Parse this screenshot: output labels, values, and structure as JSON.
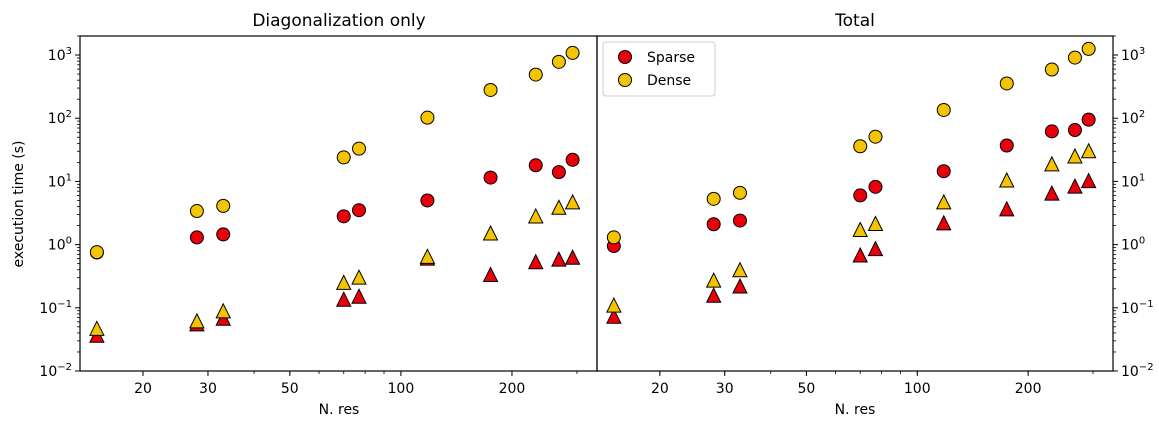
{
  "chart_data": [
    {
      "type": "scatter",
      "title": "Diagonalization only",
      "xlabel": "N. res",
      "ylabel": "execution time (s)",
      "xscale": "log",
      "yscale": "log",
      "xlim": [
        13.5,
        340
      ],
      "ylim": [
        0.01,
        2000
      ],
      "xticks": [
        {
          "v": 20,
          "label": "20"
        },
        {
          "v": 30,
          "label": "30"
        },
        {
          "v": 50,
          "label": "50"
        },
        {
          "v": 100,
          "label": "100"
        },
        {
          "v": 200,
          "label": "200"
        }
      ],
      "yticks": [
        {
          "v": 0.01,
          "base": "10",
          "exp": "−2"
        },
        {
          "v": 0.1,
          "base": "10",
          "exp": "−1"
        },
        {
          "v": 1,
          "base": "10",
          "exp": "0"
        },
        {
          "v": 10,
          "base": "10",
          "exp": "1"
        },
        {
          "v": 100,
          "base": "10",
          "exp": "2"
        },
        {
          "v": 1000,
          "base": "10",
          "exp": "3"
        }
      ],
      "yaxis_side": "left",
      "series": [
        {
          "marker": "circle",
          "color": "#e8000b",
          "points": [
            [
              15,
              0.75
            ],
            [
              28,
              1.3
            ],
            [
              33,
              1.45
            ],
            [
              70,
              2.8
            ],
            [
              77,
              3.5
            ],
            [
              118,
              5.0
            ],
            [
              175,
              11.5
            ],
            [
              232,
              18
            ],
            [
              268,
              14
            ],
            [
              292,
              22
            ]
          ]
        },
        {
          "marker": "circle",
          "color": "#f5c400",
          "points": [
            [
              15,
              0.76
            ],
            [
              28,
              3.4
            ],
            [
              33,
              4.1
            ],
            [
              70,
              24
            ],
            [
              77,
              33
            ],
            [
              118,
              102
            ],
            [
              175,
              280
            ],
            [
              232,
              490
            ],
            [
              268,
              780
            ],
            [
              292,
              1080
            ]
          ]
        },
        {
          "marker": "triangle",
          "color": "#e8000b",
          "points": [
            [
              15,
              0.035
            ],
            [
              28,
              0.053
            ],
            [
              33,
              0.065
            ],
            [
              70,
              0.13
            ],
            [
              77,
              0.145
            ],
            [
              118,
              0.58
            ],
            [
              175,
              0.32
            ],
            [
              232,
              0.51
            ],
            [
              268,
              0.56
            ],
            [
              292,
              0.6
            ]
          ]
        },
        {
          "marker": "triangle",
          "color": "#f5c400",
          "points": [
            [
              15,
              0.045
            ],
            [
              28,
              0.059
            ],
            [
              33,
              0.085
            ],
            [
              70,
              0.24
            ],
            [
              77,
              0.29
            ],
            [
              118,
              0.62
            ],
            [
              175,
              1.45
            ],
            [
              232,
              2.7
            ],
            [
              268,
              3.7
            ],
            [
              292,
              4.5
            ]
          ]
        }
      ]
    },
    {
      "type": "scatter",
      "title": "Total",
      "xlabel": "N. res",
      "ylabel": "",
      "xscale": "log",
      "yscale": "log",
      "xlim": [
        13.5,
        340
      ],
      "ylim": [
        0.01,
        2000
      ],
      "xticks": [
        {
          "v": 20,
          "label": "20"
        },
        {
          "v": 30,
          "label": "30"
        },
        {
          "v": 50,
          "label": "50"
        },
        {
          "v": 100,
          "label": "100"
        },
        {
          "v": 200,
          "label": "200"
        }
      ],
      "yticks": [
        {
          "v": 0.01,
          "base": "10",
          "exp": "−2"
        },
        {
          "v": 0.1,
          "base": "10",
          "exp": "−1"
        },
        {
          "v": 1,
          "base": "10",
          "exp": "0"
        },
        {
          "v": 10,
          "base": "10",
          "exp": "1"
        },
        {
          "v": 100,
          "base": "10",
          "exp": "2"
        },
        {
          "v": 1000,
          "base": "10",
          "exp": "3"
        }
      ],
      "yaxis_side": "right",
      "legend": {
        "position": "top-left",
        "entries": [
          {
            "label": "Sparse",
            "color": "#e8000b"
          },
          {
            "label": "Dense",
            "color": "#f5c400"
          }
        ]
      },
      "series": [
        {
          "name": "Sparse",
          "marker": "circle",
          "color": "#e8000b",
          "points": [
            [
              15,
              0.95
            ],
            [
              28,
              2.1
            ],
            [
              33,
              2.4
            ],
            [
              70,
              6.0
            ],
            [
              77,
              8.2
            ],
            [
              118,
              14.5
            ],
            [
              175,
              37
            ],
            [
              232,
              62
            ],
            [
              268,
              65
            ],
            [
              292,
              95
            ]
          ]
        },
        {
          "name": "Dense",
          "marker": "circle",
          "color": "#f5c400",
          "points": [
            [
              15,
              1.3
            ],
            [
              28,
              5.3
            ],
            [
              33,
              6.6
            ],
            [
              70,
              36
            ],
            [
              77,
              51
            ],
            [
              118,
              135
            ],
            [
              175,
              355
            ],
            [
              232,
              590
            ],
            [
              268,
              910
            ],
            [
              292,
              1250
            ]
          ]
        },
        {
          "marker": "triangle",
          "color": "#e8000b",
          "points": [
            [
              15,
              0.07
            ],
            [
              28,
              0.15
            ],
            [
              33,
              0.21
            ],
            [
              70,
              0.65
            ],
            [
              77,
              0.82
            ],
            [
              118,
              2.1
            ],
            [
              175,
              3.5
            ],
            [
              232,
              6.2
            ],
            [
              268,
              8.0
            ],
            [
              292,
              9.8
            ]
          ]
        },
        {
          "marker": "triangle",
          "color": "#f5c400",
          "points": [
            [
              15,
              0.105
            ],
            [
              28,
              0.26
            ],
            [
              33,
              0.38
            ],
            [
              70,
              1.65
            ],
            [
              77,
              2.05
            ],
            [
              118,
              4.5
            ],
            [
              175,
              10.0
            ],
            [
              232,
              18
            ],
            [
              268,
              24
            ],
            [
              292,
              29
            ]
          ]
        }
      ]
    }
  ]
}
